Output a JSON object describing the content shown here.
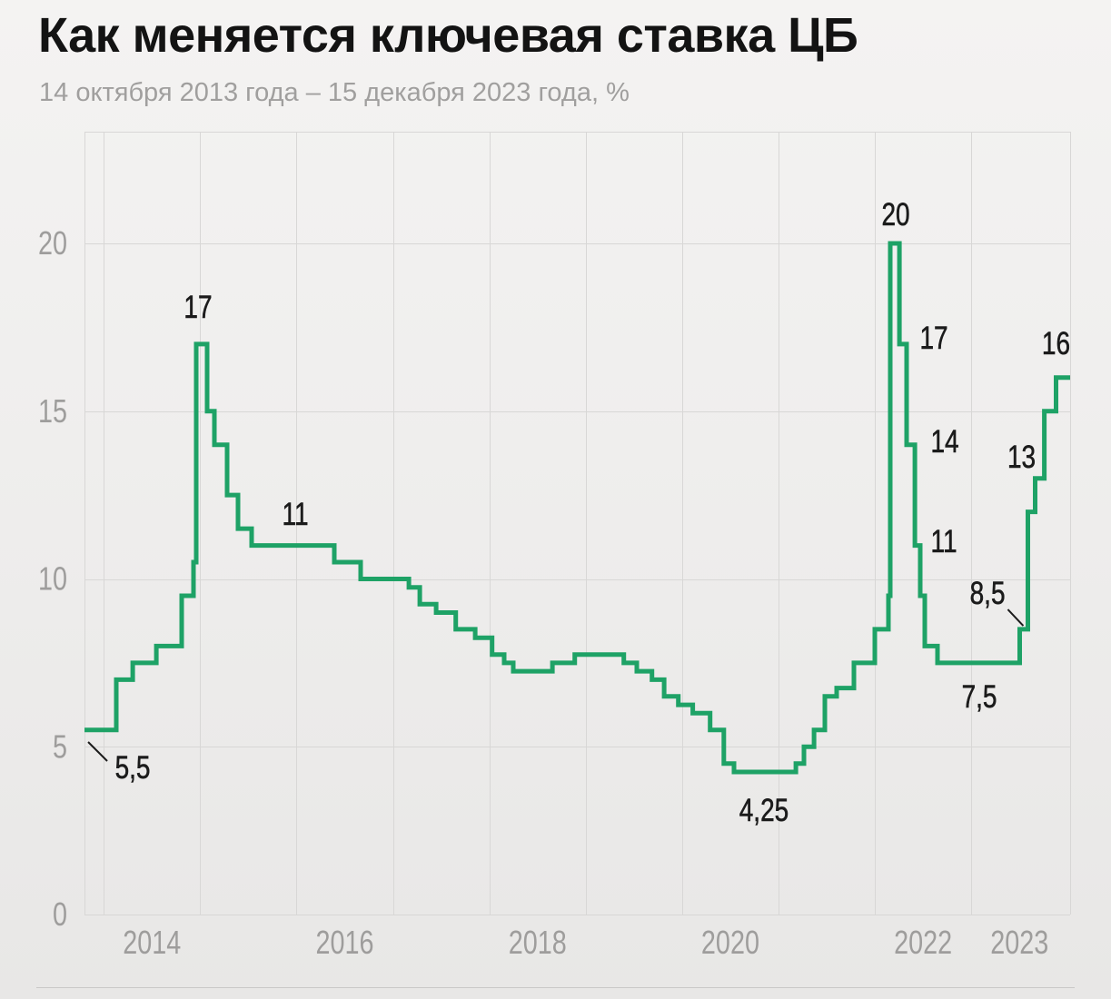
{
  "title": "Как меняется ключевая ставка ЦБ",
  "subtitle": "14 октября 2013 года – 15 декабря 2023 года, %",
  "colors": {
    "line": "#1ea266",
    "grid": "#d8d7d6",
    "axis_label": "#9e9d9c",
    "annotation": "#1b1b1b",
    "separator": "#c9c8c7"
  },
  "chart_data": {
    "type": "line",
    "style": "step-after",
    "title": "Как меняется ключевая ставка ЦБ",
    "subtitle": "14 октября 2013 года – 15 декабря 2023 года, %",
    "ylabel": "%",
    "x_unit": "decimal_year",
    "x_range": [
      2013.8,
      2024.025
    ],
    "y_range": [
      0,
      23.33
    ],
    "yticks": [
      0,
      5,
      10,
      15,
      20
    ],
    "year_gridlines": [
      2014,
      2015,
      2016,
      2017,
      2018,
      2019,
      2020,
      2021,
      2022,
      2023
    ],
    "xticks": [
      {
        "label": "2014",
        "t": 2014.5
      },
      {
        "label": "2016",
        "t": 2016.5
      },
      {
        "label": "2018",
        "t": 2018.5
      },
      {
        "label": "2020",
        "t": 2020.5
      },
      {
        "label": "2022",
        "t": 2022.5
      },
      {
        "label": "2023",
        "t": 2023.5
      }
    ],
    "series": [
      {
        "name": "Ключевая ставка ЦБ, %",
        "points": [
          [
            2013.8,
            5.5
          ],
          [
            2014.13,
            7.0
          ],
          [
            2014.3,
            7.5
          ],
          [
            2014.545,
            8.0
          ],
          [
            2014.808,
            9.5
          ],
          [
            2014.931,
            10.5
          ],
          [
            2014.959,
            17.0
          ],
          [
            2015.072,
            15.0
          ],
          [
            2015.148,
            14.0
          ],
          [
            2015.28,
            12.5
          ],
          [
            2015.393,
            11.5
          ],
          [
            2015.534,
            11.0
          ],
          [
            2016.392,
            10.5
          ],
          [
            2016.665,
            10.0
          ],
          [
            2017.165,
            9.75
          ],
          [
            2017.278,
            9.25
          ],
          [
            2017.448,
            9.0
          ],
          [
            2017.652,
            8.5
          ],
          [
            2017.853,
            8.25
          ],
          [
            2018.029,
            7.75
          ],
          [
            2018.154,
            7.5
          ],
          [
            2018.248,
            7.25
          ],
          [
            2018.654,
            7.5
          ],
          [
            2018.886,
            7.75
          ],
          [
            2019.395,
            7.5
          ],
          [
            2019.53,
            7.25
          ],
          [
            2019.687,
            7.0
          ],
          [
            2019.813,
            6.5
          ],
          [
            2019.96,
            6.25
          ],
          [
            2020.11,
            6.0
          ],
          [
            2020.29,
            5.5
          ],
          [
            2020.433,
            4.5
          ],
          [
            2020.538,
            4.25
          ],
          [
            2021.18,
            4.5
          ],
          [
            2021.264,
            5.0
          ],
          [
            2021.368,
            5.5
          ],
          [
            2021.481,
            6.5
          ],
          [
            2021.603,
            6.75
          ],
          [
            2021.782,
            7.5
          ],
          [
            2021.999,
            8.5
          ],
          [
            2022.14,
            9.5
          ],
          [
            2022.159,
            20.0
          ],
          [
            2022.254,
            17.0
          ],
          [
            2022.329,
            14.0
          ],
          [
            2022.414,
            11.0
          ],
          [
            2022.47,
            9.5
          ],
          [
            2022.517,
            8.0
          ],
          [
            2022.649,
            7.5
          ],
          [
            2023.502,
            8.5
          ],
          [
            2023.587,
            12.0
          ],
          [
            2023.662,
            13.0
          ],
          [
            2023.757,
            15.0
          ],
          [
            2023.879,
            16.0
          ],
          [
            2024.025,
            16.0
          ]
        ]
      }
    ],
    "annotations": [
      {
        "label": "5,5",
        "t": 2014.3,
        "v": 4.385,
        "leader": [
          2013.838,
          5.142,
          2014.036,
          4.574
        ]
      },
      {
        "label": "17",
        "t": 2014.978,
        "v": 18.105
      },
      {
        "label": "11",
        "t": 2015.987,
        "v": 11.935
      },
      {
        "label": "4,25",
        "t": 2020.849,
        "v": 3.112
      },
      {
        "label": "20",
        "t": 2022.216,
        "v": 20.866
      },
      {
        "label": "17",
        "t": 2022.612,
        "v": 17.185
      },
      {
        "label": "14",
        "t": 2022.725,
        "v": 14.1
      },
      {
        "label": "11",
        "t": 2022.716,
        "v": 11.123
      },
      {
        "label": "8,5",
        "t": 2023.168,
        "v": 9.58,
        "leader": [
          2023.379,
          9.093,
          2023.539,
          8.606
        ]
      },
      {
        "label": "7,5",
        "t": 2023.083,
        "v": 6.495
      },
      {
        "label": "13",
        "t": 2023.521,
        "v": 13.64
      },
      {
        "label": "16",
        "t": 2023.879,
        "v": 17.023
      }
    ],
    "legend": false,
    "grid": true
  }
}
